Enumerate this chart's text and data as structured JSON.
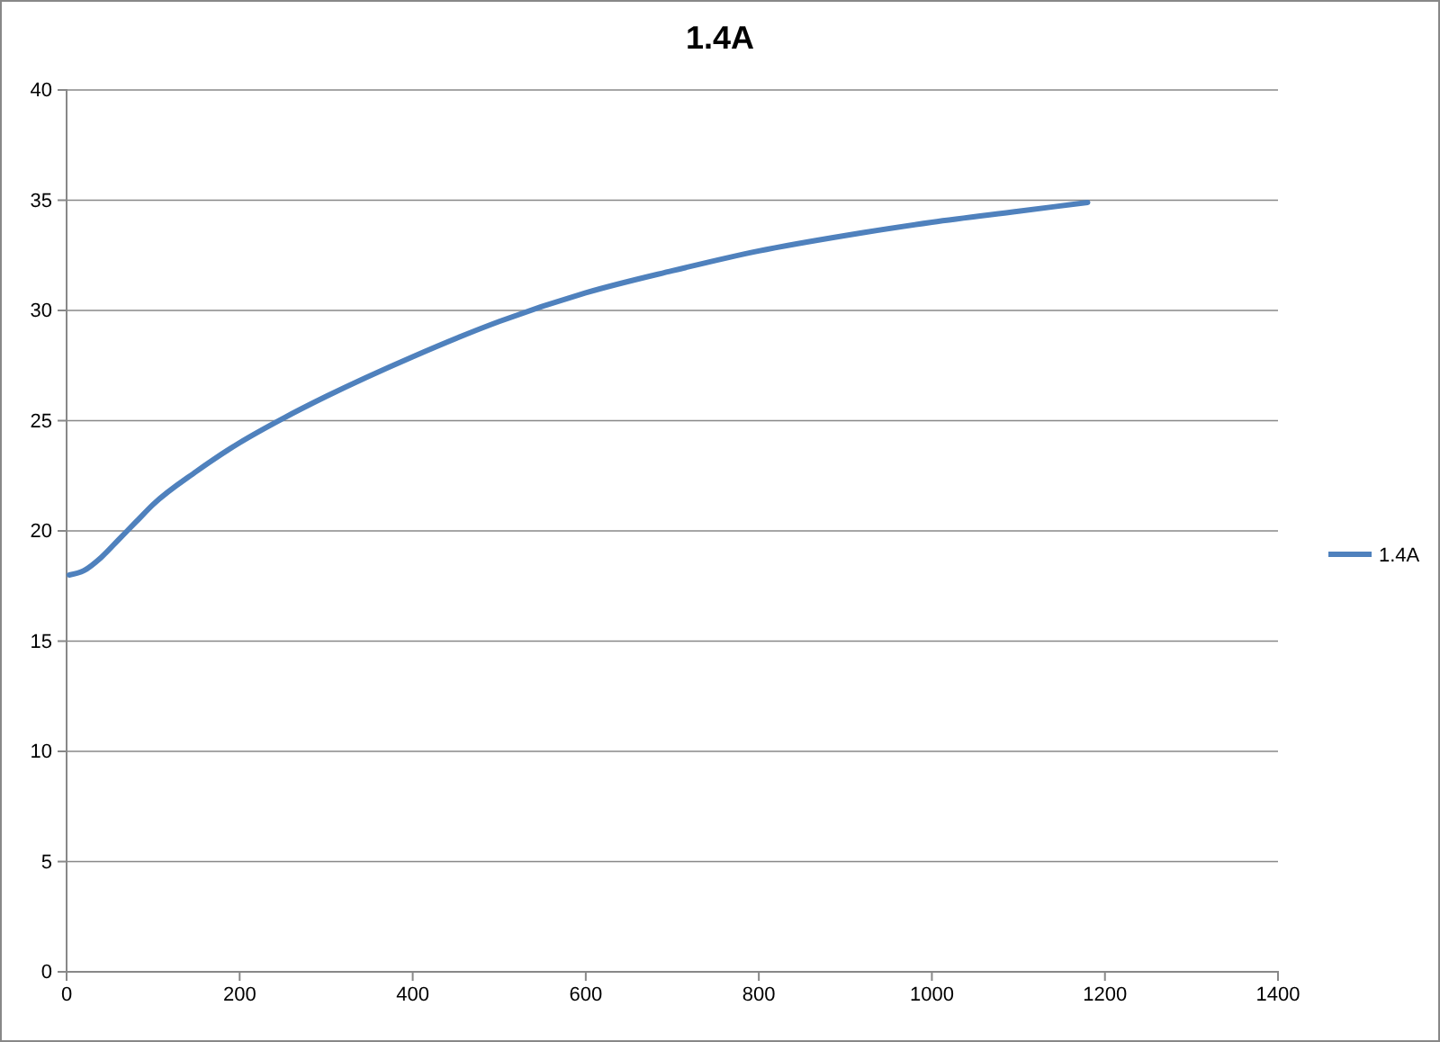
{
  "chart_data": {
    "type": "line",
    "title": "1.4A",
    "x": [
      3,
      20,
      40,
      60,
      80,
      100,
      150,
      200,
      250,
      300,
      400,
      500,
      600,
      700,
      800,
      900,
      1000,
      1100,
      1180
    ],
    "series": [
      {
        "name": "1.4A",
        "color": "#4f81bd",
        "values": [
          18,
          18.2,
          18.8,
          19.6,
          20.4,
          21.2,
          22.7,
          24,
          25.1,
          26.1,
          27.9,
          29.5,
          30.8,
          31.8,
          32.7,
          33.4,
          34,
          34.5,
          34.9
        ]
      }
    ],
    "xlim": [
      0,
      1400
    ],
    "xticks": [
      0,
      200,
      400,
      600,
      800,
      1000,
      1200,
      1400
    ],
    "ylim": [
      0,
      40
    ],
    "yticks": [
      0,
      5,
      10,
      15,
      20,
      25,
      30,
      35,
      40
    ],
    "grid": "y",
    "legend": "right",
    "marker": "none",
    "line_style": "solid"
  }
}
